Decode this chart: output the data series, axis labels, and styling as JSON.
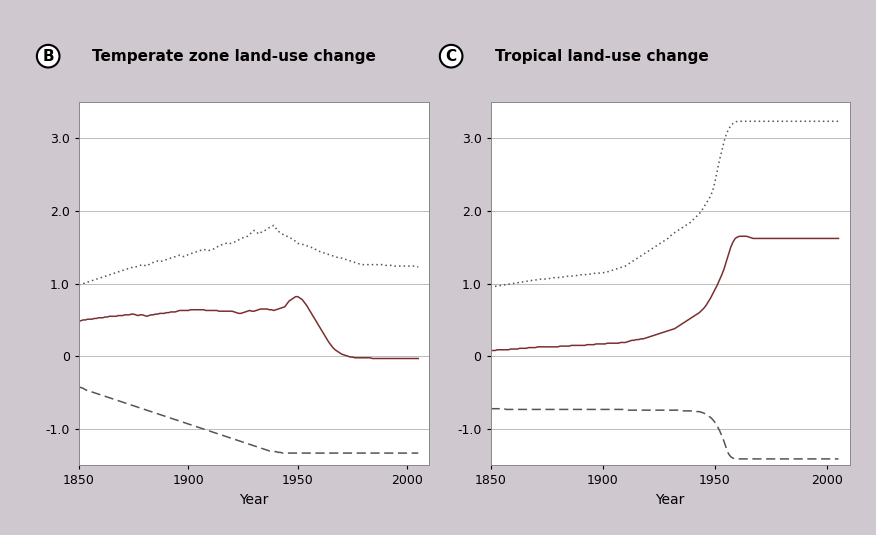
{
  "background_color": "#cfc8cf",
  "plot_bg": "#ffffff",
  "title_B": "Temperate zone land-use change",
  "title_C": "Tropical land-use change",
  "label_B": "B",
  "label_C": "C",
  "xlabel": "Year",
  "ylim": [
    -1.5,
    3.5
  ],
  "yticks": [
    -1.0,
    0,
    1.0,
    2.0,
    3.0
  ],
  "xlim": [
    1850,
    2010
  ],
  "xticks": [
    1850,
    1900,
    1950,
    2000
  ],
  "line_color_dotted": "#555555",
  "line_color_solid": "#7a3030",
  "line_color_dashed": "#555555",
  "years": [
    1850,
    1851,
    1852,
    1853,
    1854,
    1855,
    1856,
    1857,
    1858,
    1859,
    1860,
    1861,
    1862,
    1863,
    1864,
    1865,
    1866,
    1867,
    1868,
    1869,
    1870,
    1871,
    1872,
    1873,
    1874,
    1875,
    1876,
    1877,
    1878,
    1879,
    1880,
    1881,
    1882,
    1883,
    1884,
    1885,
    1886,
    1887,
    1888,
    1889,
    1890,
    1891,
    1892,
    1893,
    1894,
    1895,
    1896,
    1897,
    1898,
    1899,
    1900,
    1901,
    1902,
    1903,
    1904,
    1905,
    1906,
    1907,
    1908,
    1909,
    1910,
    1911,
    1912,
    1913,
    1914,
    1915,
    1916,
    1917,
    1918,
    1919,
    1920,
    1921,
    1922,
    1923,
    1924,
    1925,
    1926,
    1927,
    1928,
    1929,
    1930,
    1931,
    1932,
    1933,
    1934,
    1935,
    1936,
    1937,
    1938,
    1939,
    1940,
    1941,
    1942,
    1943,
    1944,
    1945,
    1946,
    1947,
    1948,
    1949,
    1950,
    1951,
    1952,
    1953,
    1954,
    1955,
    1956,
    1957,
    1958,
    1959,
    1960,
    1961,
    1962,
    1963,
    1964,
    1965,
    1966,
    1967,
    1968,
    1969,
    1970,
    1971,
    1972,
    1973,
    1974,
    1975,
    1976,
    1977,
    1978,
    1979,
    1980,
    1981,
    1982,
    1983,
    1984,
    1985,
    1986,
    1987,
    1988,
    1989,
    1990,
    1991,
    1992,
    1993,
    1994,
    1995,
    1996,
    1997,
    1998,
    1999,
    2000,
    2001,
    2002,
    2003,
    2004,
    2005
  ],
  "B_dotted": [
    0.98,
    0.99,
    1.0,
    1.01,
    1.02,
    1.03,
    1.04,
    1.05,
    1.06,
    1.07,
    1.08,
    1.09,
    1.1,
    1.11,
    1.12,
    1.13,
    1.14,
    1.15,
    1.16,
    1.17,
    1.18,
    1.19,
    1.2,
    1.21,
    1.22,
    1.22,
    1.23,
    1.24,
    1.25,
    1.26,
    1.25,
    1.24,
    1.26,
    1.28,
    1.29,
    1.3,
    1.31,
    1.3,
    1.31,
    1.32,
    1.33,
    1.34,
    1.35,
    1.36,
    1.37,
    1.38,
    1.39,
    1.38,
    1.37,
    1.38,
    1.4,
    1.41,
    1.42,
    1.43,
    1.44,
    1.45,
    1.46,
    1.47,
    1.46,
    1.45,
    1.46,
    1.47,
    1.48,
    1.5,
    1.52,
    1.53,
    1.54,
    1.55,
    1.56,
    1.55,
    1.56,
    1.57,
    1.58,
    1.6,
    1.62,
    1.63,
    1.64,
    1.65,
    1.68,
    1.7,
    1.73,
    1.72,
    1.68,
    1.7,
    1.72,
    1.73,
    1.75,
    1.77,
    1.78,
    1.8,
    1.76,
    1.72,
    1.7,
    1.68,
    1.66,
    1.65,
    1.64,
    1.62,
    1.6,
    1.58,
    1.55,
    1.55,
    1.54,
    1.53,
    1.52,
    1.51,
    1.5,
    1.48,
    1.47,
    1.46,
    1.44,
    1.43,
    1.42,
    1.41,
    1.4,
    1.39,
    1.38,
    1.37,
    1.36,
    1.36,
    1.35,
    1.34,
    1.33,
    1.32,
    1.31,
    1.3,
    1.29,
    1.28,
    1.27,
    1.26,
    1.26,
    1.26,
    1.26,
    1.26,
    1.26,
    1.26,
    1.26,
    1.26,
    1.26,
    1.26,
    1.25,
    1.25,
    1.25,
    1.25,
    1.24,
    1.24,
    1.24,
    1.24,
    1.24,
    1.24,
    1.24,
    1.24,
    1.24,
    1.24,
    1.23,
    1.23
  ],
  "B_solid": [
    0.48,
    0.49,
    0.5,
    0.5,
    0.51,
    0.51,
    0.51,
    0.52,
    0.52,
    0.53,
    0.53,
    0.53,
    0.54,
    0.54,
    0.55,
    0.55,
    0.55,
    0.55,
    0.56,
    0.56,
    0.56,
    0.57,
    0.57,
    0.57,
    0.58,
    0.58,
    0.57,
    0.56,
    0.57,
    0.57,
    0.56,
    0.55,
    0.56,
    0.57,
    0.57,
    0.58,
    0.58,
    0.59,
    0.59,
    0.59,
    0.6,
    0.6,
    0.61,
    0.61,
    0.61,
    0.62,
    0.63,
    0.63,
    0.63,
    0.63,
    0.63,
    0.64,
    0.64,
    0.64,
    0.64,
    0.64,
    0.64,
    0.64,
    0.63,
    0.63,
    0.63,
    0.63,
    0.63,
    0.63,
    0.62,
    0.62,
    0.62,
    0.62,
    0.62,
    0.62,
    0.62,
    0.61,
    0.6,
    0.59,
    0.59,
    0.6,
    0.61,
    0.62,
    0.63,
    0.62,
    0.62,
    0.63,
    0.64,
    0.65,
    0.65,
    0.65,
    0.65,
    0.64,
    0.64,
    0.63,
    0.64,
    0.65,
    0.66,
    0.67,
    0.68,
    0.72,
    0.76,
    0.78,
    0.8,
    0.82,
    0.82,
    0.8,
    0.78,
    0.74,
    0.7,
    0.65,
    0.6,
    0.55,
    0.5,
    0.45,
    0.4,
    0.35,
    0.3,
    0.25,
    0.2,
    0.16,
    0.12,
    0.09,
    0.07,
    0.05,
    0.03,
    0.02,
    0.01,
    0.0,
    -0.01,
    -0.01,
    -0.02,
    -0.02,
    -0.02,
    -0.02,
    -0.02,
    -0.02,
    -0.02,
    -0.02,
    -0.03,
    -0.03,
    -0.03,
    -0.03,
    -0.03,
    -0.03,
    -0.03,
    -0.03,
    -0.03,
    -0.03,
    -0.03,
    -0.03,
    -0.03,
    -0.03,
    -0.03,
    -0.03,
    -0.03,
    -0.03,
    -0.03,
    -0.03,
    -0.03,
    -0.03
  ],
  "B_dashed": [
    -0.42,
    -0.43,
    -0.44,
    -0.46,
    -0.47,
    -0.48,
    -0.49,
    -0.5,
    -0.51,
    -0.52,
    -0.53,
    -0.54,
    -0.55,
    -0.56,
    -0.57,
    -0.58,
    -0.59,
    -0.6,
    -0.61,
    -0.62,
    -0.63,
    -0.64,
    -0.65,
    -0.66,
    -0.67,
    -0.68,
    -0.69,
    -0.7,
    -0.71,
    -0.72,
    -0.73,
    -0.74,
    -0.75,
    -0.76,
    -0.77,
    -0.78,
    -0.79,
    -0.8,
    -0.81,
    -0.82,
    -0.83,
    -0.84,
    -0.85,
    -0.86,
    -0.87,
    -0.88,
    -0.89,
    -0.9,
    -0.91,
    -0.92,
    -0.93,
    -0.94,
    -0.95,
    -0.96,
    -0.97,
    -0.98,
    -0.99,
    -1.0,
    -1.01,
    -1.02,
    -1.03,
    -1.04,
    -1.05,
    -1.06,
    -1.07,
    -1.08,
    -1.09,
    -1.1,
    -1.11,
    -1.12,
    -1.13,
    -1.14,
    -1.15,
    -1.16,
    -1.17,
    -1.18,
    -1.19,
    -1.2,
    -1.21,
    -1.22,
    -1.23,
    -1.24,
    -1.25,
    -1.26,
    -1.27,
    -1.28,
    -1.29,
    -1.3,
    -1.3,
    -1.31,
    -1.31,
    -1.32,
    -1.32,
    -1.33,
    -1.33,
    -1.33,
    -1.33,
    -1.33,
    -1.33,
    -1.33,
    -1.33,
    -1.33,
    -1.33,
    -1.33,
    -1.33,
    -1.33,
    -1.33,
    -1.33,
    -1.33,
    -1.33,
    -1.33,
    -1.33,
    -1.33,
    -1.33,
    -1.33,
    -1.33,
    -1.33,
    -1.33,
    -1.33,
    -1.33,
    -1.33,
    -1.33,
    -1.33,
    -1.33,
    -1.33,
    -1.33,
    -1.33,
    -1.33,
    -1.33,
    -1.33,
    -1.33,
    -1.33,
    -1.33,
    -1.33,
    -1.33,
    -1.33,
    -1.33,
    -1.33,
    -1.33,
    -1.33,
    -1.33,
    -1.33,
    -1.33,
    -1.33,
    -1.33,
    -1.33,
    -1.33,
    -1.33,
    -1.33,
    -1.33,
    -1.33,
    -1.33,
    -1.33,
    -1.33,
    -1.33,
    -1.33
  ],
  "C_dotted": [
    0.95,
    0.96,
    0.96,
    0.97,
    0.97,
    0.98,
    0.98,
    0.99,
    0.99,
    1.0,
    1.0,
    1.01,
    1.01,
    1.02,
    1.02,
    1.03,
    1.03,
    1.04,
    1.04,
    1.05,
    1.05,
    1.05,
    1.06,
    1.06,
    1.06,
    1.07,
    1.07,
    1.07,
    1.08,
    1.08,
    1.08,
    1.09,
    1.09,
    1.09,
    1.1,
    1.1,
    1.1,
    1.11,
    1.11,
    1.11,
    1.12,
    1.12,
    1.12,
    1.13,
    1.13,
    1.13,
    1.14,
    1.14,
    1.14,
    1.15,
    1.15,
    1.15,
    1.16,
    1.17,
    1.18,
    1.19,
    1.2,
    1.21,
    1.22,
    1.23,
    1.24,
    1.26,
    1.28,
    1.3,
    1.32,
    1.34,
    1.36,
    1.38,
    1.4,
    1.42,
    1.44,
    1.46,
    1.48,
    1.5,
    1.52,
    1.54,
    1.56,
    1.58,
    1.6,
    1.62,
    1.65,
    1.68,
    1.7,
    1.72,
    1.74,
    1.76,
    1.78,
    1.8,
    1.82,
    1.84,
    1.87,
    1.9,
    1.93,
    1.96,
    2.0,
    2.05,
    2.1,
    2.15,
    2.2,
    2.28,
    2.4,
    2.55,
    2.7,
    2.82,
    2.95,
    3.05,
    3.12,
    3.17,
    3.2,
    3.22,
    3.23,
    3.23,
    3.23,
    3.23,
    3.23,
    3.23,
    3.23,
    3.23,
    3.23,
    3.23,
    3.23,
    3.23,
    3.23,
    3.23,
    3.23,
    3.23,
    3.23,
    3.23,
    3.23,
    3.23,
    3.23,
    3.23,
    3.23,
    3.23,
    3.23,
    3.23,
    3.23,
    3.23,
    3.23,
    3.23,
    3.23,
    3.23,
    3.23,
    3.23,
    3.23,
    3.23,
    3.23,
    3.23,
    3.23,
    3.23,
    3.23,
    3.23,
    3.23,
    3.23,
    3.23,
    3.23
  ],
  "C_solid": [
    0.08,
    0.08,
    0.08,
    0.09,
    0.09,
    0.09,
    0.09,
    0.09,
    0.09,
    0.1,
    0.1,
    0.1,
    0.1,
    0.11,
    0.11,
    0.11,
    0.11,
    0.12,
    0.12,
    0.12,
    0.12,
    0.13,
    0.13,
    0.13,
    0.13,
    0.13,
    0.13,
    0.13,
    0.13,
    0.13,
    0.13,
    0.14,
    0.14,
    0.14,
    0.14,
    0.14,
    0.15,
    0.15,
    0.15,
    0.15,
    0.15,
    0.15,
    0.15,
    0.16,
    0.16,
    0.16,
    0.16,
    0.17,
    0.17,
    0.17,
    0.17,
    0.17,
    0.18,
    0.18,
    0.18,
    0.18,
    0.18,
    0.18,
    0.19,
    0.19,
    0.19,
    0.2,
    0.21,
    0.22,
    0.22,
    0.23,
    0.23,
    0.24,
    0.24,
    0.25,
    0.26,
    0.27,
    0.28,
    0.29,
    0.3,
    0.31,
    0.32,
    0.33,
    0.34,
    0.35,
    0.36,
    0.37,
    0.38,
    0.4,
    0.42,
    0.44,
    0.46,
    0.48,
    0.5,
    0.52,
    0.54,
    0.56,
    0.58,
    0.6,
    0.63,
    0.66,
    0.7,
    0.75,
    0.8,
    0.86,
    0.92,
    0.98,
    1.05,
    1.12,
    1.2,
    1.3,
    1.4,
    1.5,
    1.57,
    1.62,
    1.64,
    1.65,
    1.65,
    1.65,
    1.65,
    1.64,
    1.63,
    1.62,
    1.62,
    1.62,
    1.62,
    1.62,
    1.62,
    1.62,
    1.62,
    1.62,
    1.62,
    1.62,
    1.62,
    1.62,
    1.62,
    1.62,
    1.62,
    1.62,
    1.62,
    1.62,
    1.62,
    1.62,
    1.62,
    1.62,
    1.62,
    1.62,
    1.62,
    1.62,
    1.62,
    1.62,
    1.62,
    1.62,
    1.62,
    1.62,
    1.62,
    1.62,
    1.62,
    1.62,
    1.62,
    1.62
  ],
  "C_dashed": [
    -0.72,
    -0.72,
    -0.72,
    -0.72,
    -0.72,
    -0.72,
    -0.72,
    -0.73,
    -0.73,
    -0.73,
    -0.73,
    -0.73,
    -0.73,
    -0.73,
    -0.73,
    -0.73,
    -0.73,
    -0.73,
    -0.73,
    -0.73,
    -0.73,
    -0.73,
    -0.73,
    -0.73,
    -0.73,
    -0.73,
    -0.73,
    -0.73,
    -0.73,
    -0.73,
    -0.73,
    -0.73,
    -0.73,
    -0.73,
    -0.73,
    -0.73,
    -0.73,
    -0.73,
    -0.73,
    -0.73,
    -0.73,
    -0.73,
    -0.73,
    -0.73,
    -0.73,
    -0.73,
    -0.73,
    -0.73,
    -0.73,
    -0.73,
    -0.73,
    -0.73,
    -0.73,
    -0.73,
    -0.73,
    -0.73,
    -0.73,
    -0.73,
    -0.73,
    -0.73,
    -0.73,
    -0.74,
    -0.74,
    -0.74,
    -0.74,
    -0.74,
    -0.74,
    -0.74,
    -0.74,
    -0.74,
    -0.74,
    -0.74,
    -0.74,
    -0.74,
    -0.74,
    -0.74,
    -0.74,
    -0.74,
    -0.74,
    -0.74,
    -0.74,
    -0.74,
    -0.74,
    -0.74,
    -0.74,
    -0.75,
    -0.75,
    -0.75,
    -0.75,
    -0.75,
    -0.75,
    -0.75,
    -0.76,
    -0.76,
    -0.77,
    -0.78,
    -0.8,
    -0.82,
    -0.84,
    -0.87,
    -0.91,
    -0.96,
    -1.02,
    -1.09,
    -1.17,
    -1.26,
    -1.34,
    -1.38,
    -1.4,
    -1.41,
    -1.41,
    -1.41,
    -1.41,
    -1.41,
    -1.41,
    -1.41,
    -1.41,
    -1.41,
    -1.41,
    -1.41,
    -1.41,
    -1.41,
    -1.41,
    -1.41,
    -1.41,
    -1.41,
    -1.41,
    -1.41,
    -1.41,
    -1.41,
    -1.41,
    -1.41,
    -1.41,
    -1.41,
    -1.41,
    -1.41,
    -1.41,
    -1.41,
    -1.41,
    -1.41,
    -1.41,
    -1.41,
    -1.41,
    -1.41,
    -1.41,
    -1.41,
    -1.41,
    -1.41,
    -1.41,
    -1.41,
    -1.41,
    -1.41,
    -1.41,
    -1.41,
    -1.41,
    -1.41
  ]
}
